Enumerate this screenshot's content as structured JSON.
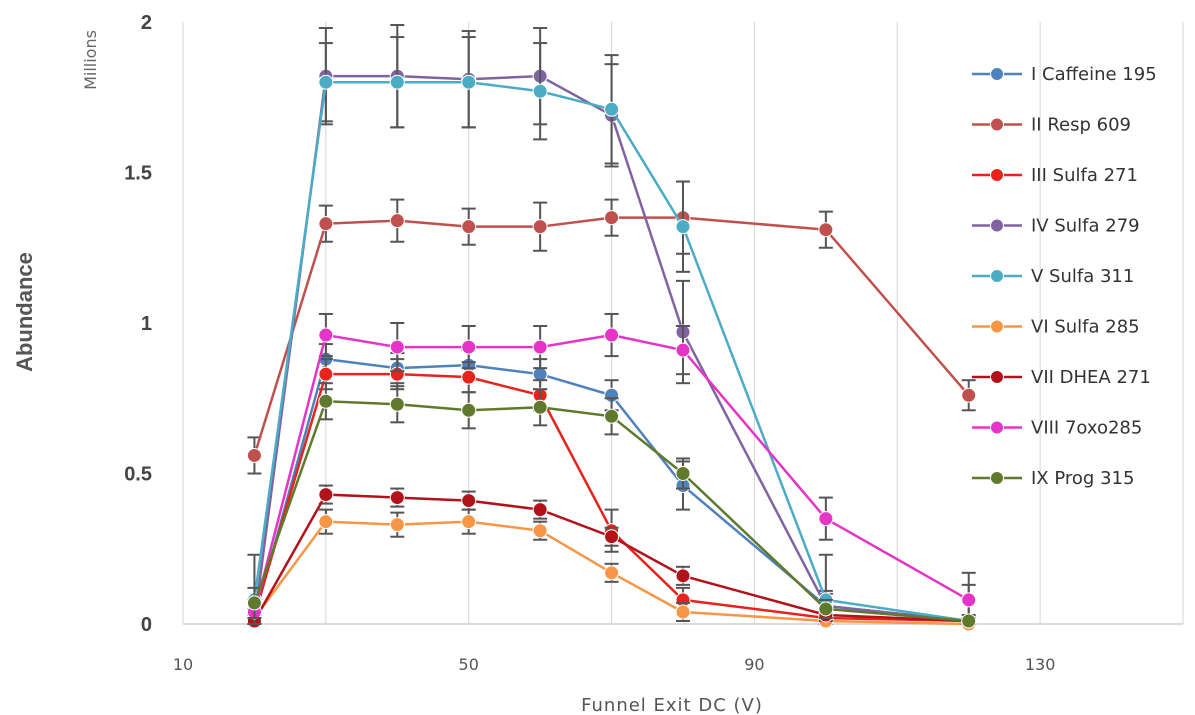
{
  "chart_data": {
    "type": "line",
    "title": "",
    "xlabel": "Funnel Exit DC (V)",
    "ylabel": "Abundance",
    "y_units": "Millions",
    "xlim": [
      10,
      150
    ],
    "ylim": [
      0,
      2
    ],
    "x_ticks": [
      "10",
      "50",
      "90",
      "130"
    ],
    "y_ticks": [
      "0",
      "0.5",
      "1",
      "1.5",
      "2"
    ],
    "grid": "vertical",
    "legend_position": "right",
    "series": [
      {
        "name": "I Caffeine 195",
        "color": "#4f81bd",
        "points": [
          [
            20,
            0.02
          ],
          [
            30,
            0.88
          ],
          [
            40,
            0.85
          ],
          [
            50,
            0.86
          ],
          [
            60,
            0.83
          ],
          [
            70,
            0.76
          ],
          [
            80,
            0.46
          ],
          [
            100,
            0.06
          ],
          [
            120,
            0.01
          ]
        ],
        "errors": [
          0.03,
          0.05,
          0.05,
          0.05,
          0.05,
          0.05,
          0.08,
          0.04,
          0.01
        ]
      },
      {
        "name": "II Resp 609",
        "color": "#c0504d",
        "points": [
          [
            20,
            0.56
          ],
          [
            30,
            1.33
          ],
          [
            40,
            1.34
          ],
          [
            50,
            1.32
          ],
          [
            60,
            1.32
          ],
          [
            70,
            1.35
          ],
          [
            80,
            1.35
          ],
          [
            100,
            1.31
          ],
          [
            120,
            0.76
          ]
        ],
        "errors": [
          0.06,
          0.06,
          0.07,
          0.06,
          0.08,
          0.06,
          0.12,
          0.06,
          0.05
        ]
      },
      {
        "name": "III Sulfa 271",
        "color": "#e8231c",
        "points": [
          [
            20,
            0.03
          ],
          [
            30,
            0.83
          ],
          [
            40,
            0.83
          ],
          [
            50,
            0.82
          ],
          [
            60,
            0.76
          ],
          [
            70,
            0.31
          ],
          [
            80,
            0.08
          ],
          [
            100,
            0.02
          ],
          [
            120,
            0.01
          ]
        ],
        "errors": [
          0.02,
          0.05,
          0.05,
          0.05,
          0.05,
          0.07,
          0.04,
          0.02,
          0.01
        ]
      },
      {
        "name": "IV Sulfa  279",
        "color": "#8064a2",
        "points": [
          [
            20,
            0.01
          ],
          [
            30,
            1.82
          ],
          [
            40,
            1.82
          ],
          [
            50,
            1.81
          ],
          [
            60,
            1.82
          ],
          [
            70,
            1.69
          ],
          [
            80,
            0.97
          ],
          [
            100,
            0.06
          ],
          [
            120,
            0.01
          ]
        ],
        "errors": [
          0.02,
          0.16,
          0.17,
          0.16,
          0.16,
          0.17,
          0.17,
          0.05,
          0.01
        ]
      },
      {
        "name": "V Sulfa 311",
        "color": "#4bacc6",
        "points": [
          [
            20,
            0.08
          ],
          [
            30,
            1.8
          ],
          [
            40,
            1.8
          ],
          [
            50,
            1.8
          ],
          [
            60,
            1.77
          ],
          [
            70,
            1.71
          ],
          [
            80,
            1.32
          ],
          [
            100,
            0.08
          ],
          [
            120,
            0.01
          ]
        ],
        "errors": [
          0.15,
          0.13,
          0.15,
          0.15,
          0.16,
          0.18,
          0.15,
          0.15,
          0.16
        ]
      },
      {
        "name": "VI Sulfa 285",
        "color": "#f79646",
        "points": [
          [
            20,
            0.02
          ],
          [
            30,
            0.34
          ],
          [
            40,
            0.33
          ],
          [
            50,
            0.34
          ],
          [
            60,
            0.31
          ],
          [
            70,
            0.17
          ],
          [
            80,
            0.04
          ],
          [
            100,
            0.01
          ],
          [
            120,
            0.0
          ]
        ],
        "errors": [
          0.02,
          0.04,
          0.04,
          0.04,
          0.03,
          0.03,
          0.03,
          0.01,
          0.01
        ]
      },
      {
        "name": "VII DHEA 271",
        "color": "#b3121b",
        "points": [
          [
            20,
            0.01
          ],
          [
            30,
            0.43
          ],
          [
            40,
            0.42
          ],
          [
            50,
            0.41
          ],
          [
            60,
            0.38
          ],
          [
            70,
            0.29
          ],
          [
            80,
            0.16
          ],
          [
            100,
            0.03
          ],
          [
            120,
            0.01
          ]
        ],
        "errors": [
          0.02,
          0.03,
          0.03,
          0.03,
          0.03,
          0.03,
          0.03,
          0.02,
          0.01
        ]
      },
      {
        "name": "VIII 7oxo285",
        "color": "#e633c8",
        "points": [
          [
            20,
            0.04
          ],
          [
            30,
            0.96
          ],
          [
            40,
            0.92
          ],
          [
            50,
            0.92
          ],
          [
            60,
            0.92
          ],
          [
            70,
            0.96
          ],
          [
            80,
            0.91
          ],
          [
            100,
            0.35
          ],
          [
            120,
            0.08
          ]
        ],
        "errors": [
          0.04,
          0.07,
          0.08,
          0.07,
          0.07,
          0.07,
          0.08,
          0.07,
          0.05
        ]
      },
      {
        "name": "IX Prog 315",
        "color": "#5f7a2d",
        "points": [
          [
            20,
            0.07
          ],
          [
            30,
            0.74
          ],
          [
            40,
            0.73
          ],
          [
            50,
            0.71
          ],
          [
            60,
            0.72
          ],
          [
            70,
            0.69
          ],
          [
            80,
            0.5
          ],
          [
            100,
            0.05
          ],
          [
            120,
            0.01
          ]
        ],
        "errors": [
          0.05,
          0.06,
          0.06,
          0.06,
          0.06,
          0.06,
          0.05,
          0.03,
          0.01
        ]
      }
    ]
  }
}
